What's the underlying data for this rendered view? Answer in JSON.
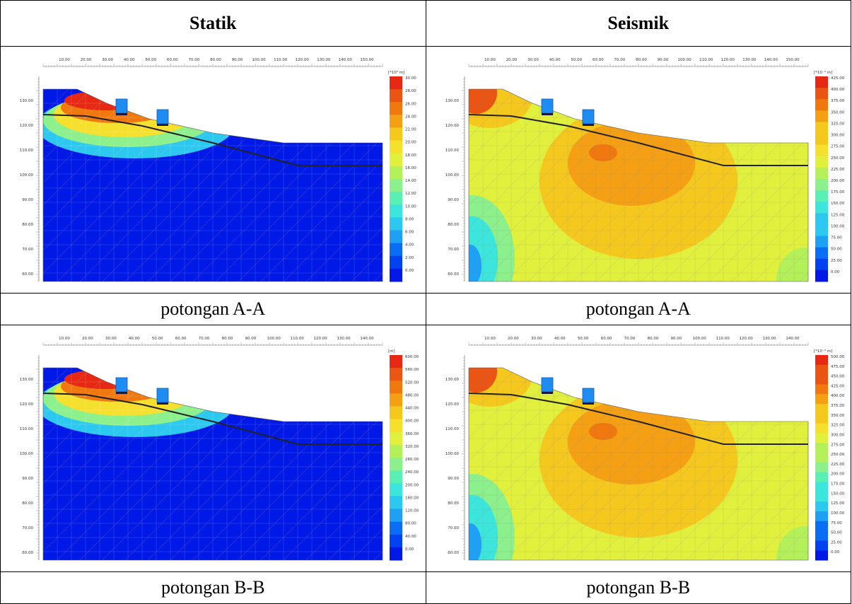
{
  "headers": {
    "left": "Statik",
    "right": "Seismik"
  },
  "colors": [
    "#0019e6",
    "#0041f0",
    "#0a6ef5",
    "#1ea0f5",
    "#2dc8f0",
    "#3ce6dc",
    "#5af0b4",
    "#8cf08c",
    "#b4f05a",
    "#e1f03c",
    "#f5e12d",
    "#f5c81e",
    "#f5a014",
    "#f0780f",
    "#eb5514",
    "#e62814"
  ],
  "panels": [
    {
      "id": "aa-statik",
      "caption": "potongan A-A",
      "x_ticks": [
        "10.00",
        "20.00",
        "30.00",
        "40.00",
        "50.00",
        "60.00",
        "70.00",
        "80.00",
        "90.00",
        "100.00",
        "110.00",
        "120.00",
        "130.00",
        "140.00",
        "150.00"
      ],
      "y_ticks": [
        "130.00",
        "120.00",
        "110.00",
        "100.00",
        "90.00",
        "80.00",
        "70.00",
        "60.00"
      ],
      "legend_unit": "[*10³ m]",
      "legend_labels": [
        "30.00",
        "28.00",
        "26.00",
        "24.00",
        "22.00",
        "20.00",
        "18.00",
        "16.00",
        "14.00",
        "12.00",
        "10.00",
        "8.00",
        "6.00",
        "4.00",
        "2.00",
        "0.00"
      ]
    },
    {
      "id": "aa-seismik",
      "caption": "potongan A-A",
      "x_ticks": [
        "10.00",
        "20.00",
        "30.00",
        "40.00",
        "50.00",
        "60.00",
        "70.00",
        "80.00",
        "90.00",
        "100.00",
        "110.00",
        "120.00",
        "130.00",
        "140.00",
        "150.00"
      ],
      "y_ticks": [
        "130.00",
        "120.00",
        "110.00",
        "100.00",
        "90.00",
        "80.00",
        "70.00",
        "60.00"
      ],
      "legend_unit": "[*10⁻³ m]",
      "legend_labels": [
        "425.00",
        "400.00",
        "375.00",
        "350.00",
        "325.00",
        "300.00",
        "275.00",
        "250.00",
        "225.00",
        "200.00",
        "175.00",
        "150.00",
        "125.00",
        "100.00",
        "75.00",
        "50.00",
        "25.00",
        "0.00"
      ]
    },
    {
      "id": "bb-statik",
      "caption": "potongan B-B",
      "x_ticks": [
        "10.00",
        "20.00",
        "30.00",
        "40.00",
        "50.00",
        "60.00",
        "70.00",
        "80.00",
        "90.00",
        "100.00",
        "110.00",
        "120.00",
        "130.00",
        "140.00"
      ],
      "y_ticks": [
        "130.00",
        "120.00",
        "110.00",
        "100.00",
        "90.00",
        "80.00",
        "70.00",
        "60.00"
      ],
      "legend_unit": "[m]",
      "legend_labels": [
        "600.00",
        "560.00",
        "520.00",
        "480.00",
        "440.00",
        "400.00",
        "360.00",
        "320.00",
        "280.00",
        "240.00",
        "200.00",
        "160.00",
        "120.00",
        "80.00",
        "40.00",
        "0.00"
      ]
    },
    {
      "id": "bb-seismik",
      "caption": "potongan B-B",
      "x_ticks": [
        "10.00",
        "20.00",
        "30.00",
        "40.00",
        "50.00",
        "60.00",
        "70.00",
        "80.00",
        "90.00",
        "100.00",
        "110.00",
        "120.00",
        "130.00",
        "140.00"
      ],
      "y_ticks": [
        "130.00",
        "120.00",
        "110.00",
        "100.00",
        "90.00",
        "80.00",
        "70.00",
        "60.00"
      ],
      "legend_unit": "[*10⁻³ m]",
      "legend_labels": [
        "500.00",
        "475.00",
        "450.00",
        "425.00",
        "400.00",
        "375.00",
        "350.00",
        "325.00",
        "300.00",
        "275.00",
        "250.00",
        "225.00",
        "200.00",
        "175.00",
        "150.00",
        "125.00",
        "100.00",
        "75.00",
        "50.00",
        "25.00",
        "0.00"
      ]
    }
  ]
}
